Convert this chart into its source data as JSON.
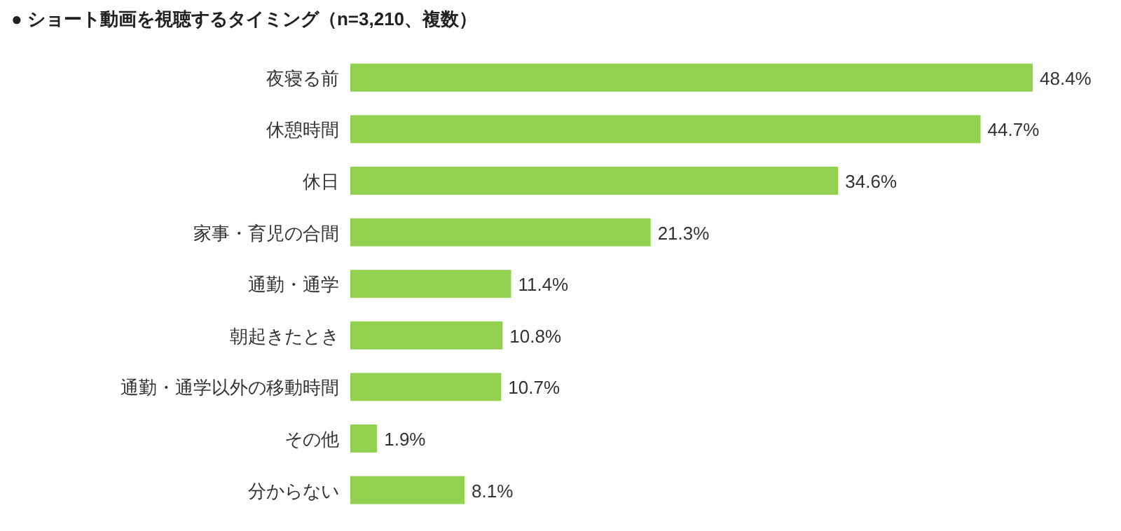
{
  "chart_data": {
    "type": "bar",
    "orientation": "horizontal",
    "title": "●  ショート動画を視聴するタイミング（n=3,210、複数）",
    "categories": [
      "夜寝る前",
      "休憩時間",
      "休日",
      "家事・育児の合間",
      "通勤・通学",
      "朝起きたとき",
      "通勤・通学以外の移動時間",
      "その他",
      "分からない"
    ],
    "values": [
      48.4,
      44.7,
      34.6,
      21.3,
      11.4,
      10.8,
      10.7,
      1.9,
      8.1
    ],
    "value_labels": [
      "48.4%",
      "44.7%",
      "34.6%",
      "21.3%",
      "11.4%",
      "10.8%",
      "10.7%",
      "1.9%",
      "8.1%"
    ],
    "color": "#92d050"
  }
}
